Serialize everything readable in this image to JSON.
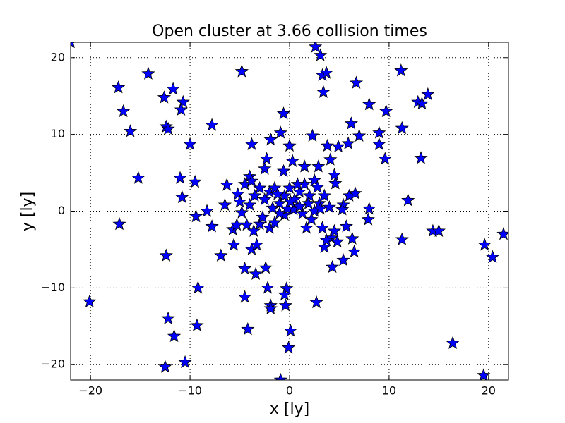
{
  "chart_data": {
    "type": "scatter",
    "title": "Open cluster at 3.66 collision times",
    "xlabel": "x [ly]",
    "ylabel": "y [ly]",
    "xlim": [
      -22,
      22
    ],
    "ylim": [
      -22,
      22
    ],
    "xticks": [
      {
        "value": -20,
        "label": "−20"
      },
      {
        "value": -10,
        "label": "−10"
      },
      0,
      10,
      20
    ],
    "yticks": [
      {
        "value": -20,
        "label": "−20"
      },
      {
        "value": -10,
        "label": "−10"
      },
      0,
      10,
      20
    ],
    "grid": true,
    "color": "#0000ff",
    "marker": "star",
    "x": [
      -22,
      2.6,
      3.1,
      -14.2,
      -17.2,
      -11.7,
      -4.8,
      3.3,
      3.7,
      3.4,
      6.7,
      11.2,
      13.9,
      12.9,
      13.3,
      -12.6,
      -10.7,
      -10.9,
      -16.7,
      8.0,
      9.7,
      -0.6,
      -12.4,
      -12.2,
      -7.8,
      -16.0,
      6.2,
      11.3,
      9.0,
      2.3,
      7.0,
      -0.9,
      -10.0,
      -3.8,
      -1.9,
      0,
      3.8,
      4.9,
      5.9,
      9.0,
      9.6,
      13.2,
      -15.2,
      -11.0,
      -9.5,
      -6.3,
      -10.8,
      11.9,
      -6.5,
      -8.3,
      8.0,
      -17.1,
      -9.4,
      -7.8,
      -5.7,
      -5.6,
      -6.9,
      -12.4,
      11.3,
      14.4,
      15.0,
      19.6,
      20.4,
      21.5,
      5.7,
      6.3,
      6.5,
      5.4,
      7.9,
      4.3,
      -4.5,
      -2.4,
      -3.4,
      -9.2,
      -0.3,
      -0.5,
      -4.5,
      -2.2,
      2.7,
      -0.4,
      -1.9,
      -1.9,
      -20.1,
      -12.2,
      -9.3,
      -4.2,
      0.1,
      -11.6,
      16.4,
      -0.1,
      -10.5,
      -12.5,
      19.5,
      -0.9,
      -4.5,
      -4,
      -3.5,
      -3,
      -2.5,
      -2,
      -1.5,
      -1,
      -0.5,
      0,
      0.5,
      1,
      1.5,
      2,
      2.5,
      3,
      3.5,
      4,
      -2.5,
      -2.3,
      -0.6,
      0.3,
      1.5,
      2.9,
      4.1,
      4.5,
      4.6,
      -4.8,
      -4.3,
      -3.6,
      -3,
      -2,
      -1.5,
      -0.5,
      0.4,
      1.3,
      1.7,
      2.5,
      3.1,
      3.3,
      3.5,
      4.2,
      4.5,
      5.4,
      5.3,
      6,
      6.6,
      -5.2,
      -5,
      -3.8,
      -3.3,
      -4,
      -1,
      0.8,
      1.9,
      -0.2,
      2.8,
      -3.8,
      -1.2,
      0.1,
      3.7,
      4.8,
      -2.7,
      -1.7,
      1,
      -5.3,
      2.2
    ],
    "y": [
      22,
      21.4,
      20.3,
      17.9,
      16.1,
      15.9,
      18.2,
      17.7,
      18.0,
      15.5,
      16.7,
      18.3,
      15.2,
      14.2,
      14.0,
      14.8,
      14.2,
      13.2,
      13.0,
      13.9,
      13.0,
      12.7,
      11.0,
      10.7,
      11.2,
      10.4,
      11.4,
      10.8,
      10.2,
      9.8,
      9.8,
      10.2,
      8.7,
      8.7,
      9.3,
      8.5,
      8.5,
      8.4,
      8.8,
      8.7,
      6.8,
      6.9,
      4.3,
      4.3,
      3.8,
      3.4,
      1.8,
      1.4,
      0.8,
      0,
      0.3,
      -1.7,
      -0.7,
      -2.0,
      -2.4,
      -4.4,
      -5.8,
      -5.8,
      -3.7,
      -2.6,
      -2.6,
      -4.4,
      -6.0,
      -3.0,
      -2.0,
      -3.6,
      -5.3,
      -6.4,
      -1.1,
      -7.3,
      -7.5,
      -7.4,
      -8.2,
      -10.0,
      -10.1,
      -10.9,
      -11.2,
      -10.0,
      -11.9,
      -12.3,
      -12.3,
      -12.7,
      -11.8,
      -14.0,
      -14.9,
      -15.4,
      -15.6,
      -16.3,
      -17.2,
      -17.8,
      -19.7,
      -20.3,
      -21.4,
      -22,
      3.5,
      4.5,
      2,
      3,
      1.5,
      2.5,
      3,
      1,
      2,
      3,
      1.5,
      2.5,
      3.5,
      2,
      4,
      1,
      2,
      0.5,
      5.5,
      6.8,
      5.2,
      6.5,
      5.8,
      5.8,
      6.7,
      4.7,
      3.6,
      -0.2,
      -1.8,
      -2.6,
      -1.7,
      -2.2,
      -1.5,
      -0.5,
      0.2,
      -0.3,
      -2.2,
      0,
      0.3,
      -2.2,
      -4.7,
      -3.5,
      -2.6,
      0.8,
      0.2,
      2,
      2.3,
      2.2,
      1.2,
      -5,
      -4.4,
      0.8,
      -0.3,
      3.5,
      1,
      0.3,
      3.1,
      3.9,
      2.2,
      1.2,
      -3.8,
      -4,
      -0.8,
      0.4,
      0.6,
      -1.8,
      -1.1
    ]
  }
}
